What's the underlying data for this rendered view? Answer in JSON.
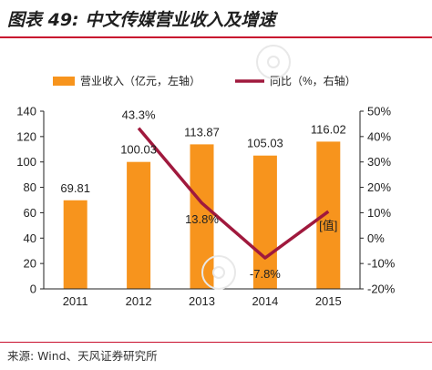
{
  "header": {
    "title": "图表 49:  中文传媒营业收入及增速"
  },
  "footer": {
    "source": "来源: Wind、天风证券研究所"
  },
  "colors": {
    "bar": "#F7941D",
    "line": "#A0193D",
    "accent": "#c8102e",
    "watermark": "#e8e8e8"
  },
  "chart_data": {
    "type": "bar",
    "categories": [
      "2011",
      "2012",
      "2013",
      "2014",
      "2015"
    ],
    "series": [
      {
        "name": "营业收入（亿元，左轴）",
        "type": "bar",
        "axis": "left",
        "values": [
          69.81,
          100.03,
          113.87,
          105.03,
          116.02
        ],
        "labels": [
          "69.81",
          "100.03",
          "113.87",
          "105.03",
          "116.02"
        ]
      },
      {
        "name": "同比（%，右轴）",
        "type": "line",
        "axis": "right",
        "values": [
          null,
          43.3,
          13.8,
          -7.8,
          10.5
        ],
        "labels": [
          "",
          "43.3%",
          "13.8%",
          "-7.8%",
          ""
        ]
      }
    ],
    "y_left": {
      "min": 0,
      "max": 140,
      "ticks": [
        "0",
        "20",
        "40",
        "60",
        "80",
        "100",
        "120",
        "140"
      ]
    },
    "y_right": {
      "min": -20,
      "max": 50,
      "ticks": [
        "-20%",
        "-10%",
        "0%",
        "10%",
        "20%",
        "30%",
        "40%",
        "50%"
      ]
    },
    "annotation": "[值]",
    "grid": false,
    "legend": "top"
  }
}
